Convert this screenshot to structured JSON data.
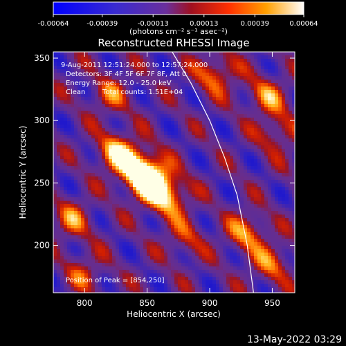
{
  "chart_data": {
    "type": "heatmap",
    "title": "Reconstructed RHESSI Image",
    "xlabel": "Heliocentric X (arcsec)",
    "ylabel": "Heliocentric Y (arcsec)",
    "xlim": [
      775,
      968
    ],
    "ylim": [
      162,
      355
    ],
    "x_ticks": [
      "800",
      "850",
      "900",
      "950"
    ],
    "x_tick_values": [
      800,
      850,
      900,
      950
    ],
    "y_ticks": [
      "200",
      "250",
      "300",
      "350"
    ],
    "y_tick_values": [
      200,
      250,
      300,
      350
    ],
    "colorbar": {
      "ticks": [
        "-0.00064",
        "-0.00039",
        "-0.00013",
        "0.00013",
        "0.00039",
        "0.00064"
      ],
      "tick_values": [
        -0.00064,
        -0.00039,
        -0.00013,
        0.00013,
        0.00039,
        0.00064
      ],
      "range": [
        -0.00064,
        0.00064
      ],
      "units": "(photons cm⁻² s⁻¹ asec⁻²)"
    },
    "annotations": {
      "time_range": "9-Aug-2011 12:51:24.000 to 12:57:24.000",
      "detectors": "Detectors: 3F 4F 5F 6F 7F 8F, Att 0",
      "energy_range": "Energy Range: 12.0 - 25.0 keV",
      "clean": "Clean",
      "total_counts": "Total counts: 1.51E+04",
      "peak": "Position of Peak = [854,250]"
    },
    "peak": [
      854,
      250
    ],
    "limb_points": [
      [
        870,
        355
      ],
      [
        885,
        330
      ],
      [
        900,
        300
      ],
      [
        912,
        270
      ],
      [
        922,
        240
      ],
      [
        930,
        200
      ],
      [
        935,
        162
      ]
    ],
    "sources": [
      {
        "x": 854,
        "y": 250,
        "intensity": 1.0
      },
      {
        "x": 842,
        "y": 262,
        "intensity": 0.85
      },
      {
        "x": 825,
        "y": 275,
        "intensity": 0.65
      },
      {
        "x": 868,
        "y": 238,
        "intensity": 0.6
      },
      {
        "x": 905,
        "y": 338,
        "intensity": 0.55
      },
      {
        "x": 945,
        "y": 320,
        "intensity": 0.5
      },
      {
        "x": 955,
        "y": 290,
        "intensity": 0.45
      },
      {
        "x": 930,
        "y": 210,
        "intensity": 0.55
      },
      {
        "x": 950,
        "y": 185,
        "intensity": 0.45
      },
      {
        "x": 790,
        "y": 220,
        "intensity": 0.45
      },
      {
        "x": 800,
        "y": 178,
        "intensity": 0.35
      },
      {
        "x": 880,
        "y": 205,
        "intensity": 0.35
      },
      {
        "x": 820,
        "y": 320,
        "intensity": 0.4
      }
    ],
    "colors": {
      "negative": "#1a1aff",
      "mid": "#6a2f9c",
      "positive_low": "#c00000",
      "positive_mid": "#ff8000",
      "positive_high": "#ffffff"
    }
  },
  "footer": {
    "timestamp": "13-May-2022 03:29"
  }
}
